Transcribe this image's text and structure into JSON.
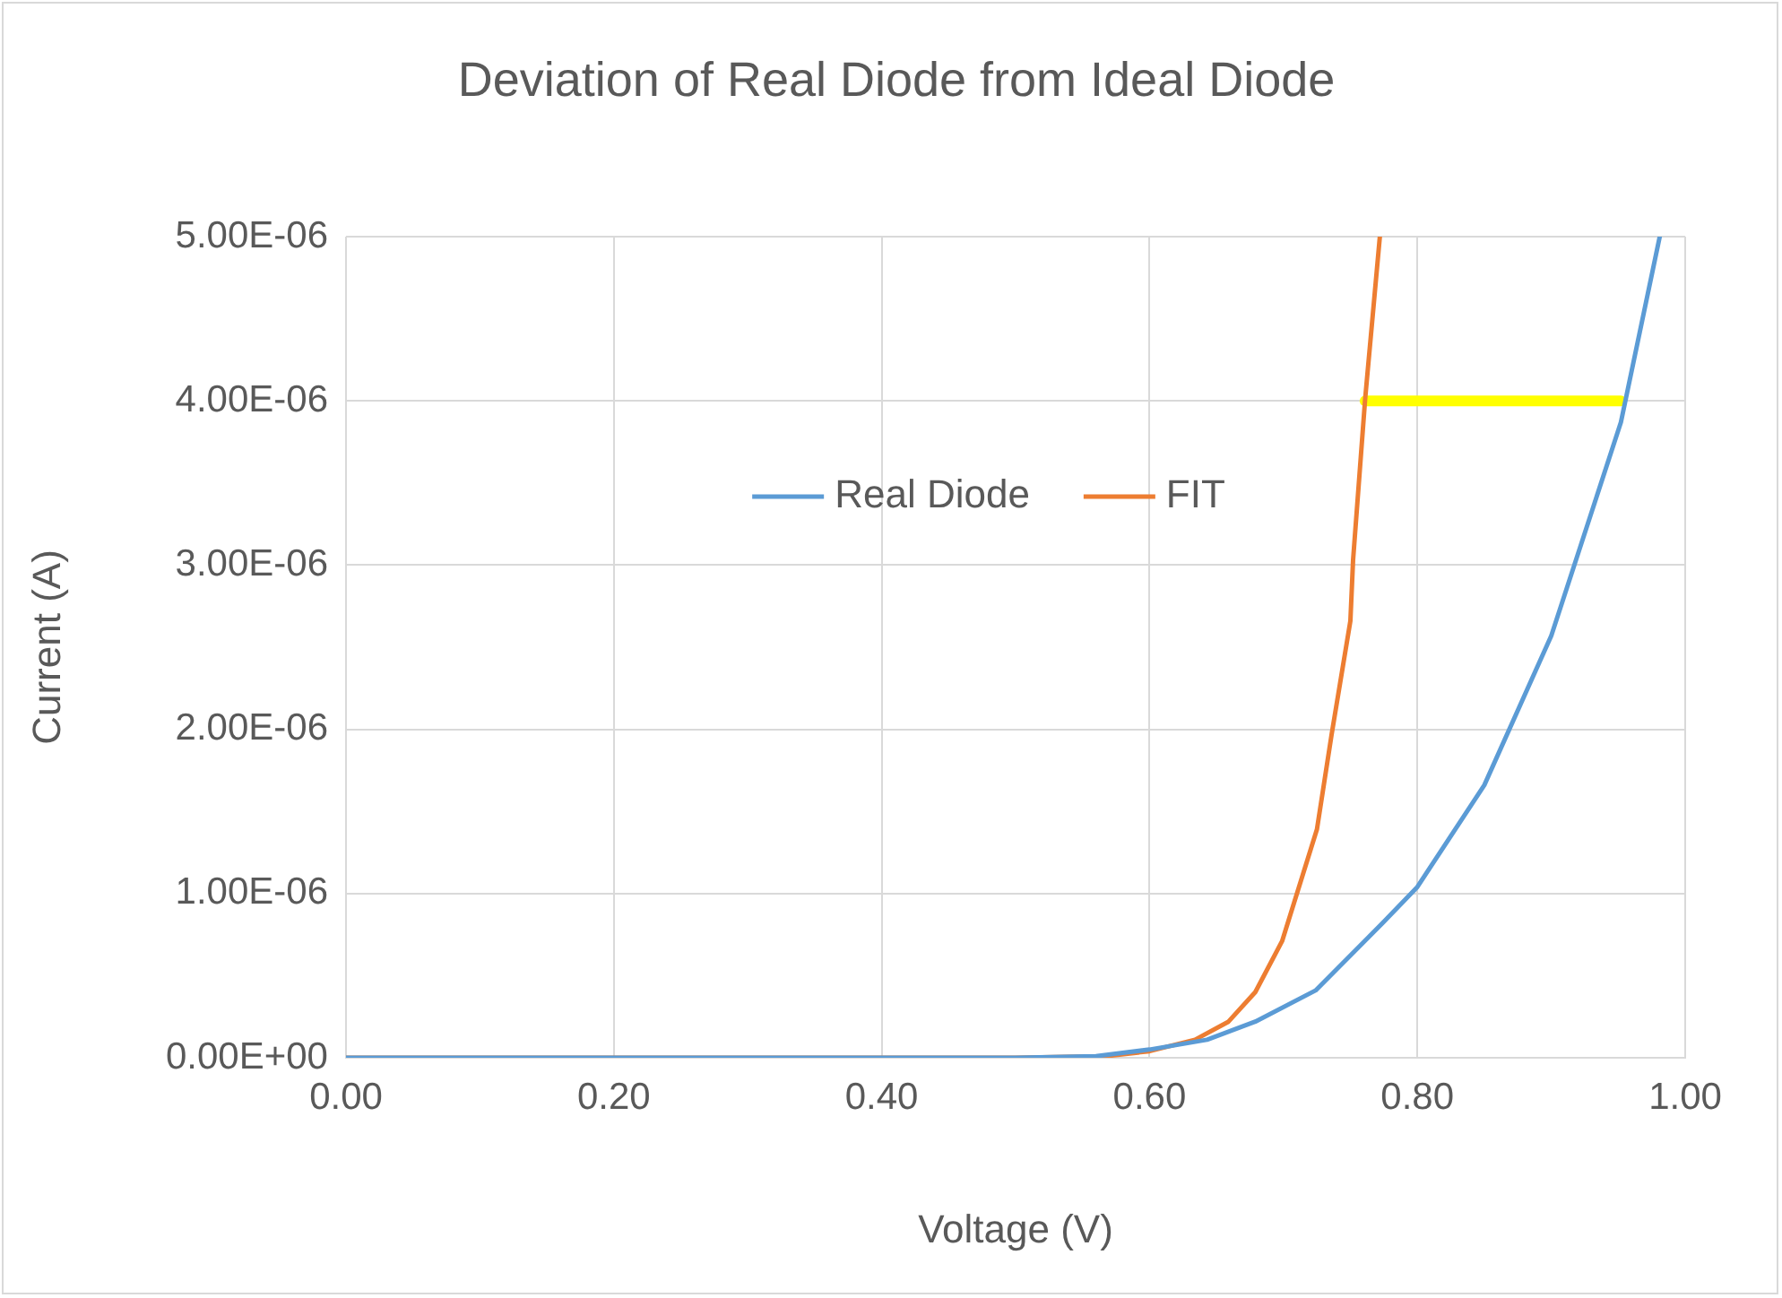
{
  "chart_data": {
    "type": "line",
    "title": "Deviation of Real Diode from Ideal Diode",
    "xlabel": "Voltage (V)",
    "ylabel": "Current (A)",
    "xlim": [
      0,
      1
    ],
    "xticks": [
      {
        "value": 0,
        "label": "0.00"
      },
      {
        "value": 0.2,
        "label": "0.20"
      },
      {
        "value": 0.4,
        "label": "0.40"
      },
      {
        "value": 0.6,
        "label": "0.60"
      },
      {
        "value": 0.8,
        "label": "0.80"
      },
      {
        "value": 1,
        "label": "1.00"
      }
    ],
    "ylim": [
      0,
      5e-06
    ],
    "yticks": [
      {
        "value": 0,
        "label": "0.00E+00"
      },
      {
        "value": 1e-06,
        "label": "1.00E-06"
      },
      {
        "value": 2e-06,
        "label": "2.00E-06"
      },
      {
        "value": 3e-06,
        "label": "3.00E-06"
      },
      {
        "value": 4e-06,
        "label": "4.00E-06"
      },
      {
        "value": 5e-06,
        "label": "5.00E-06"
      }
    ],
    "grid": true,
    "legend": "center",
    "marker": "none",
    "line_style": "solid",
    "series": [
      {
        "name": "Real Diode",
        "color": "#5b9bd5",
        "x": [
          0,
          0.5,
          0.56,
          0.6,
          0.643,
          0.679,
          0.724,
          0.774,
          0.8,
          0.85,
          0.9,
          0.952,
          0.981
        ],
        "values": [
          0,
          0,
          1e-08,
          5e-08,
          1.1e-07,
          2.2e-07,
          4.1e-07,
          8.2e-07,
          1.04e-06,
          1.66e-06,
          2.57e-06,
          3.87e-06,
          5e-06
        ]
      },
      {
        "name": "FIT",
        "color": "#ed7d31",
        "x": [
          0,
          0.5,
          0.568,
          0.6,
          0.634,
          0.659,
          0.679,
          0.699,
          0.725,
          0.736,
          0.75,
          0.752,
          0.761,
          0.772
        ],
        "values": [
          0,
          0,
          1e-08,
          4e-08,
          1.1e-07,
          2.2e-07,
          4e-07,
          7.1e-07,
          1.39e-06,
          1.97e-06,
          2.66e-06,
          3.03e-06,
          4.01e-06,
          5e-06
        ]
      },
      {
        "color": "#ffff00",
        "x": [
          0.761,
          0.952
        ],
        "values": [
          4e-06,
          4e-06
        ]
      }
    ]
  }
}
